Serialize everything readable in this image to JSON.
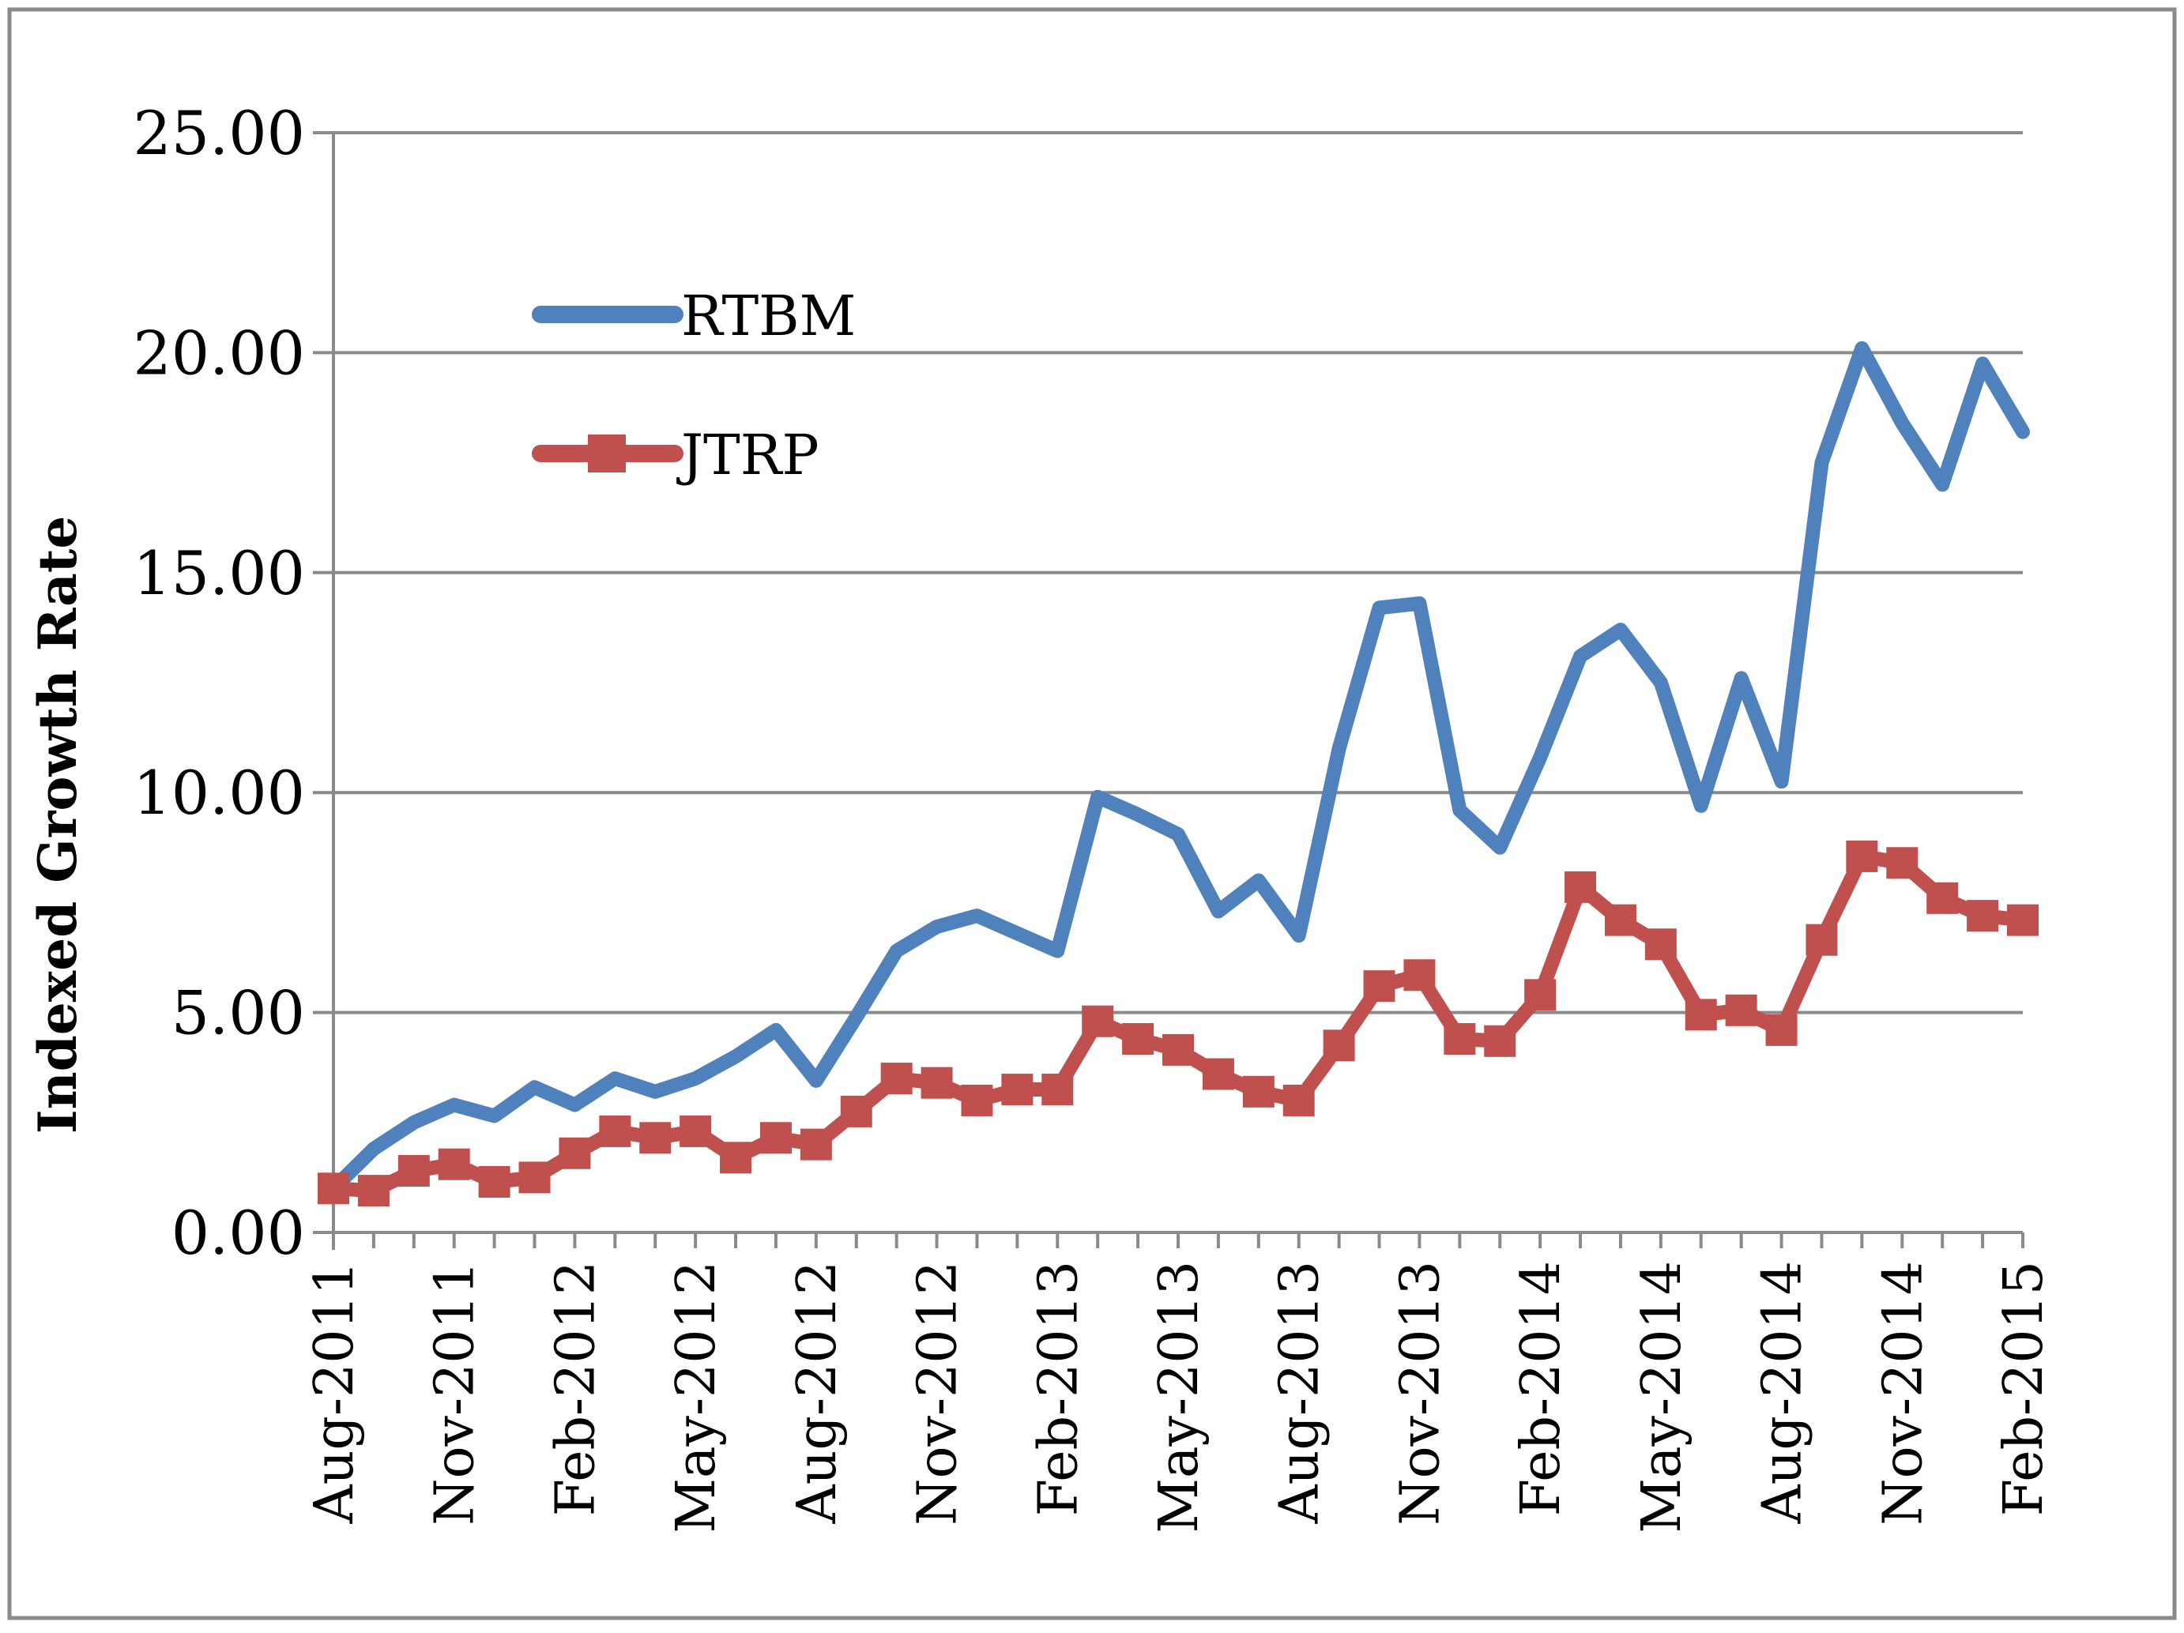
{
  "chart_data": {
    "type": "line",
    "title": "",
    "xlabel": "",
    "ylabel": "Indexed Growth Rate",
    "ylim": [
      0,
      25
    ],
    "yticks": [
      "0.00",
      "5.00",
      "10.00",
      "15.00",
      "20.00",
      "25.00"
    ],
    "grid": "horizontal",
    "legend": "upper-left-inside",
    "x": [
      "Aug-2011",
      "Sep-2011",
      "Oct-2011",
      "Nov-2011",
      "Dec-2011",
      "Jan-2012",
      "Feb-2012",
      "Mar-2012",
      "Apr-2012",
      "May-2012",
      "Jun-2012",
      "Jul-2012",
      "Aug-2012",
      "Sep-2012",
      "Oct-2012",
      "Nov-2012",
      "Dec-2012",
      "Jan-2013",
      "Feb-2013",
      "Mar-2013",
      "Apr-2013",
      "May-2013",
      "Jun-2013",
      "Jul-2013",
      "Aug-2013",
      "Sep-2013",
      "Oct-2013",
      "Nov-2013",
      "Dec-2013",
      "Jan-2014",
      "Feb-2014",
      "Mar-2014",
      "Apr-2014",
      "May-2014",
      "Jun-2014",
      "Jul-2014",
      "Aug-2014",
      "Sep-2014",
      "Oct-2014",
      "Nov-2014",
      "Dec-2014",
      "Jan-2015",
      "Feb-2015"
    ],
    "xtick_labels": [
      "Aug-2011",
      "Nov-2011",
      "Feb-2012",
      "May-2012",
      "Aug-2012",
      "Nov-2012",
      "Feb-2013",
      "May-2013",
      "Aug-2013",
      "Nov-2013",
      "Feb-2014",
      "May-2014",
      "Aug-2014",
      "Nov-2014",
      "Feb-2015"
    ],
    "series": [
      {
        "name": "RTBM",
        "color": "#4f81bd",
        "marker": "none",
        "values": [
          1.0,
          1.9,
          2.5,
          2.9,
          2.65,
          3.3,
          2.9,
          3.5,
          3.2,
          3.5,
          4.0,
          4.6,
          3.45,
          4.9,
          6.4,
          6.95,
          7.2,
          6.8,
          6.4,
          9.9,
          9.5,
          9.05,
          7.3,
          8.0,
          6.75,
          11.0,
          14.2,
          14.3,
          9.6,
          8.75,
          10.8,
          13.1,
          13.7,
          12.5,
          9.7,
          12.6,
          10.25,
          17.5,
          20.1,
          18.4,
          17.0,
          19.75,
          18.2
        ]
      },
      {
        "name": "JTRP",
        "color": "#c0504d",
        "marker": "square",
        "values": [
          1.0,
          0.95,
          1.4,
          1.55,
          1.15,
          1.25,
          1.8,
          2.3,
          2.15,
          2.3,
          1.7,
          2.15,
          2.0,
          2.75,
          3.5,
          3.4,
          3.0,
          3.25,
          3.25,
          4.8,
          4.4,
          4.15,
          3.6,
          3.2,
          3.0,
          4.25,
          5.6,
          5.85,
          4.4,
          4.35,
          5.4,
          7.85,
          7.1,
          6.55,
          4.95,
          5.05,
          4.6,
          6.65,
          8.55,
          8.4,
          7.6,
          7.2,
          7.1
        ]
      }
    ]
  }
}
